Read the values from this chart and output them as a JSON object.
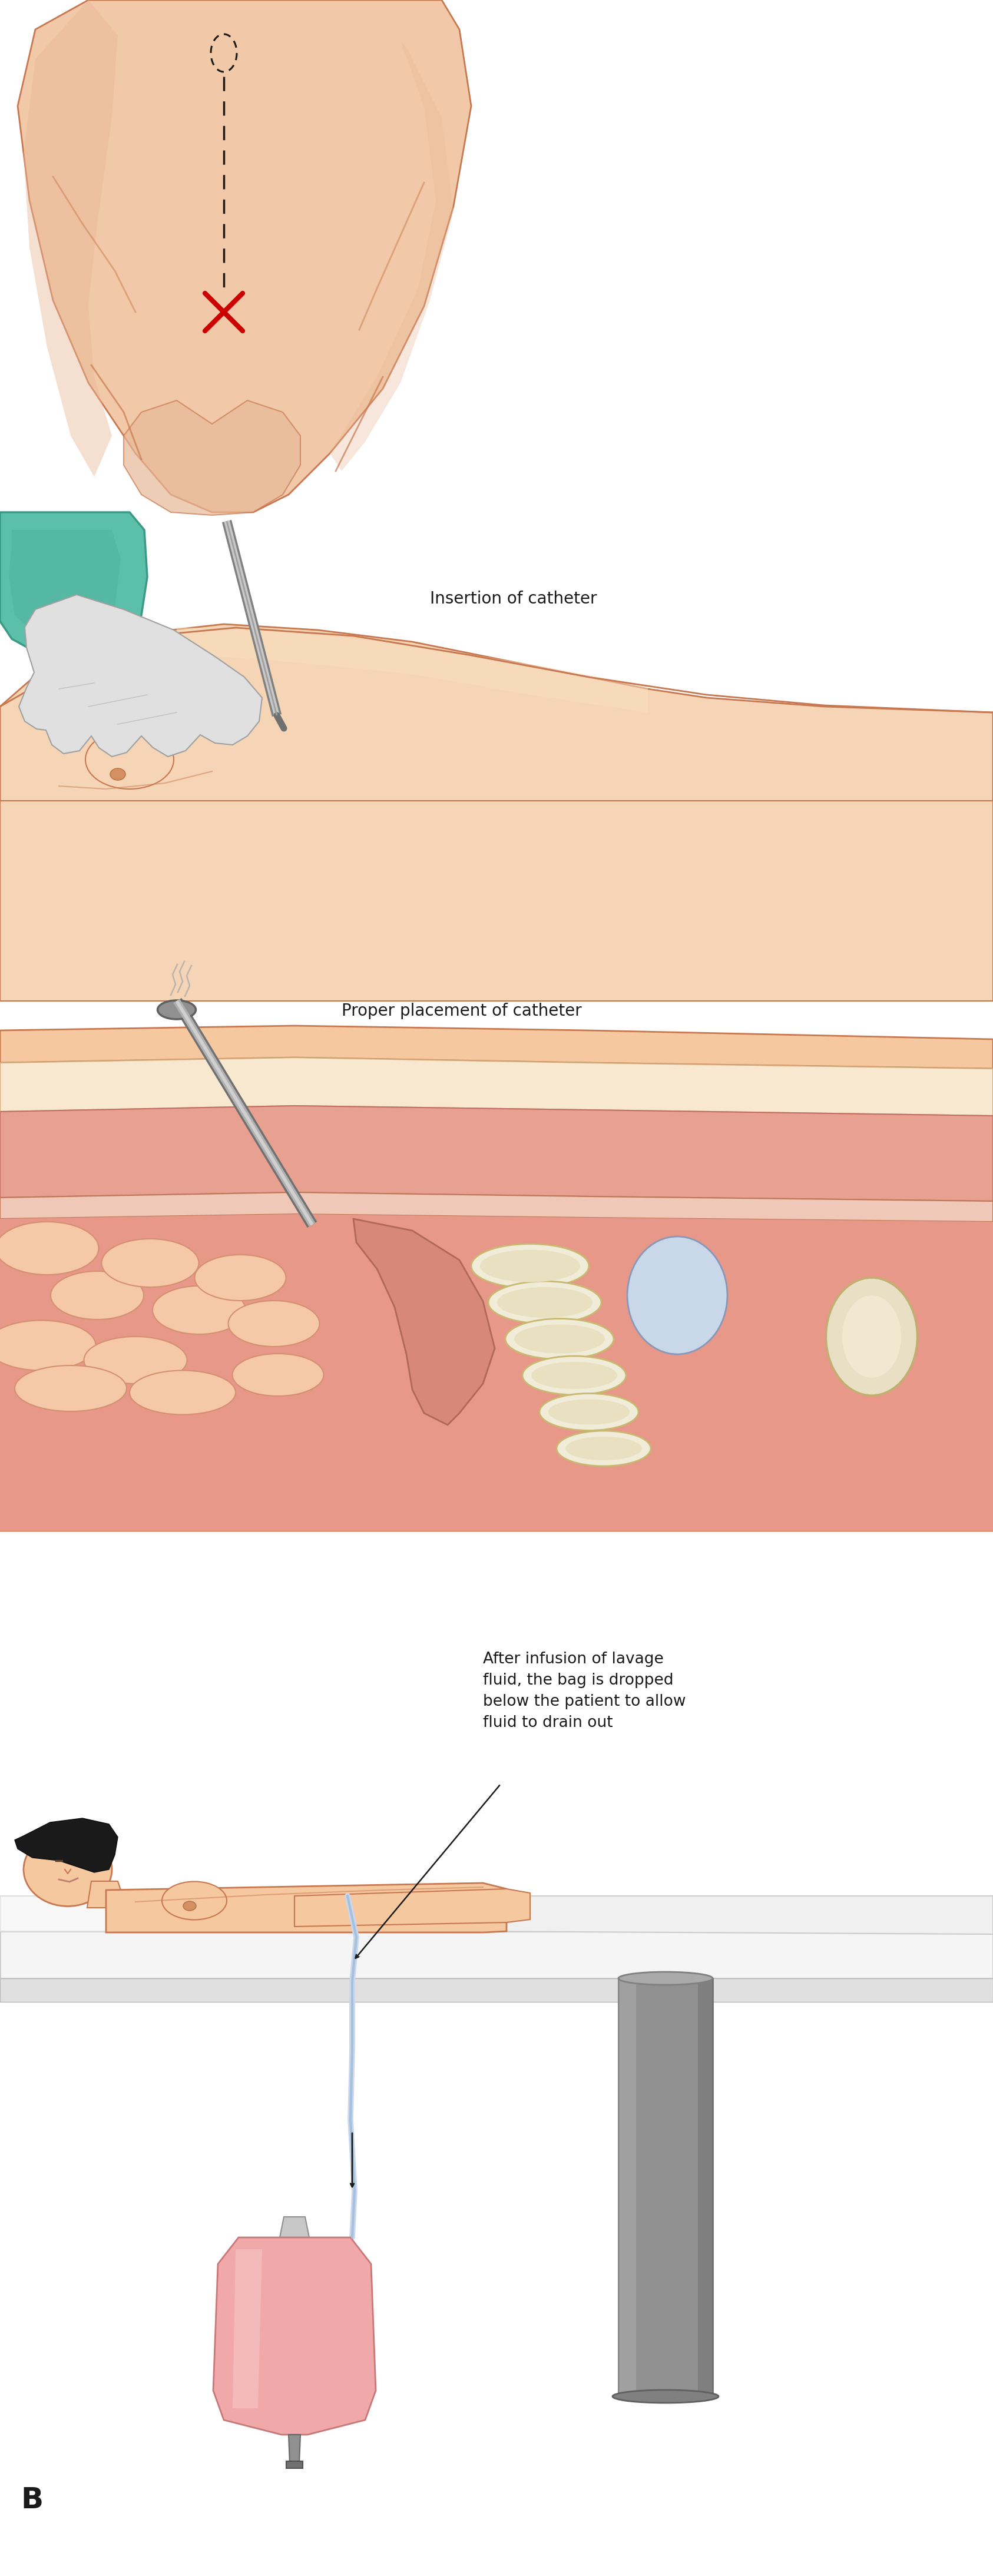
{
  "background_color": "#ffffff",
  "panel1": {
    "skin_color": "#f2c9a8",
    "skin_shadow": "#e8b898",
    "skin_outline": "#c87850",
    "dashed_line_color": "#1a1a1a",
    "x_color": "#cc0000"
  },
  "panel2": {
    "label": "Insertion of catheter",
    "skin_color": "#f5d5b5",
    "glove_color": "#e0e0e0",
    "teal_color": "#5bbfaa",
    "needle_color": "#a0a0a0"
  },
  "panel3": {
    "label": "Proper placement of catheter",
    "skin_color": "#f5c8a0",
    "cavity_color": "#e88080",
    "organ_color": "#f0b8a0",
    "needle_color": "#888888"
  },
  "panel4": {
    "label_line1": "After infusion of lavage",
    "label_line2": "fluid, the bag is dropped",
    "label_line3": "below the patient to allow",
    "label_line4": "fluid to drain out",
    "skin_color": "#f5c8a0",
    "bag_color": "#f0a0a0",
    "tube_color": "#c8d8f0"
  },
  "figure_label": "B",
  "label_fontsize": 20
}
